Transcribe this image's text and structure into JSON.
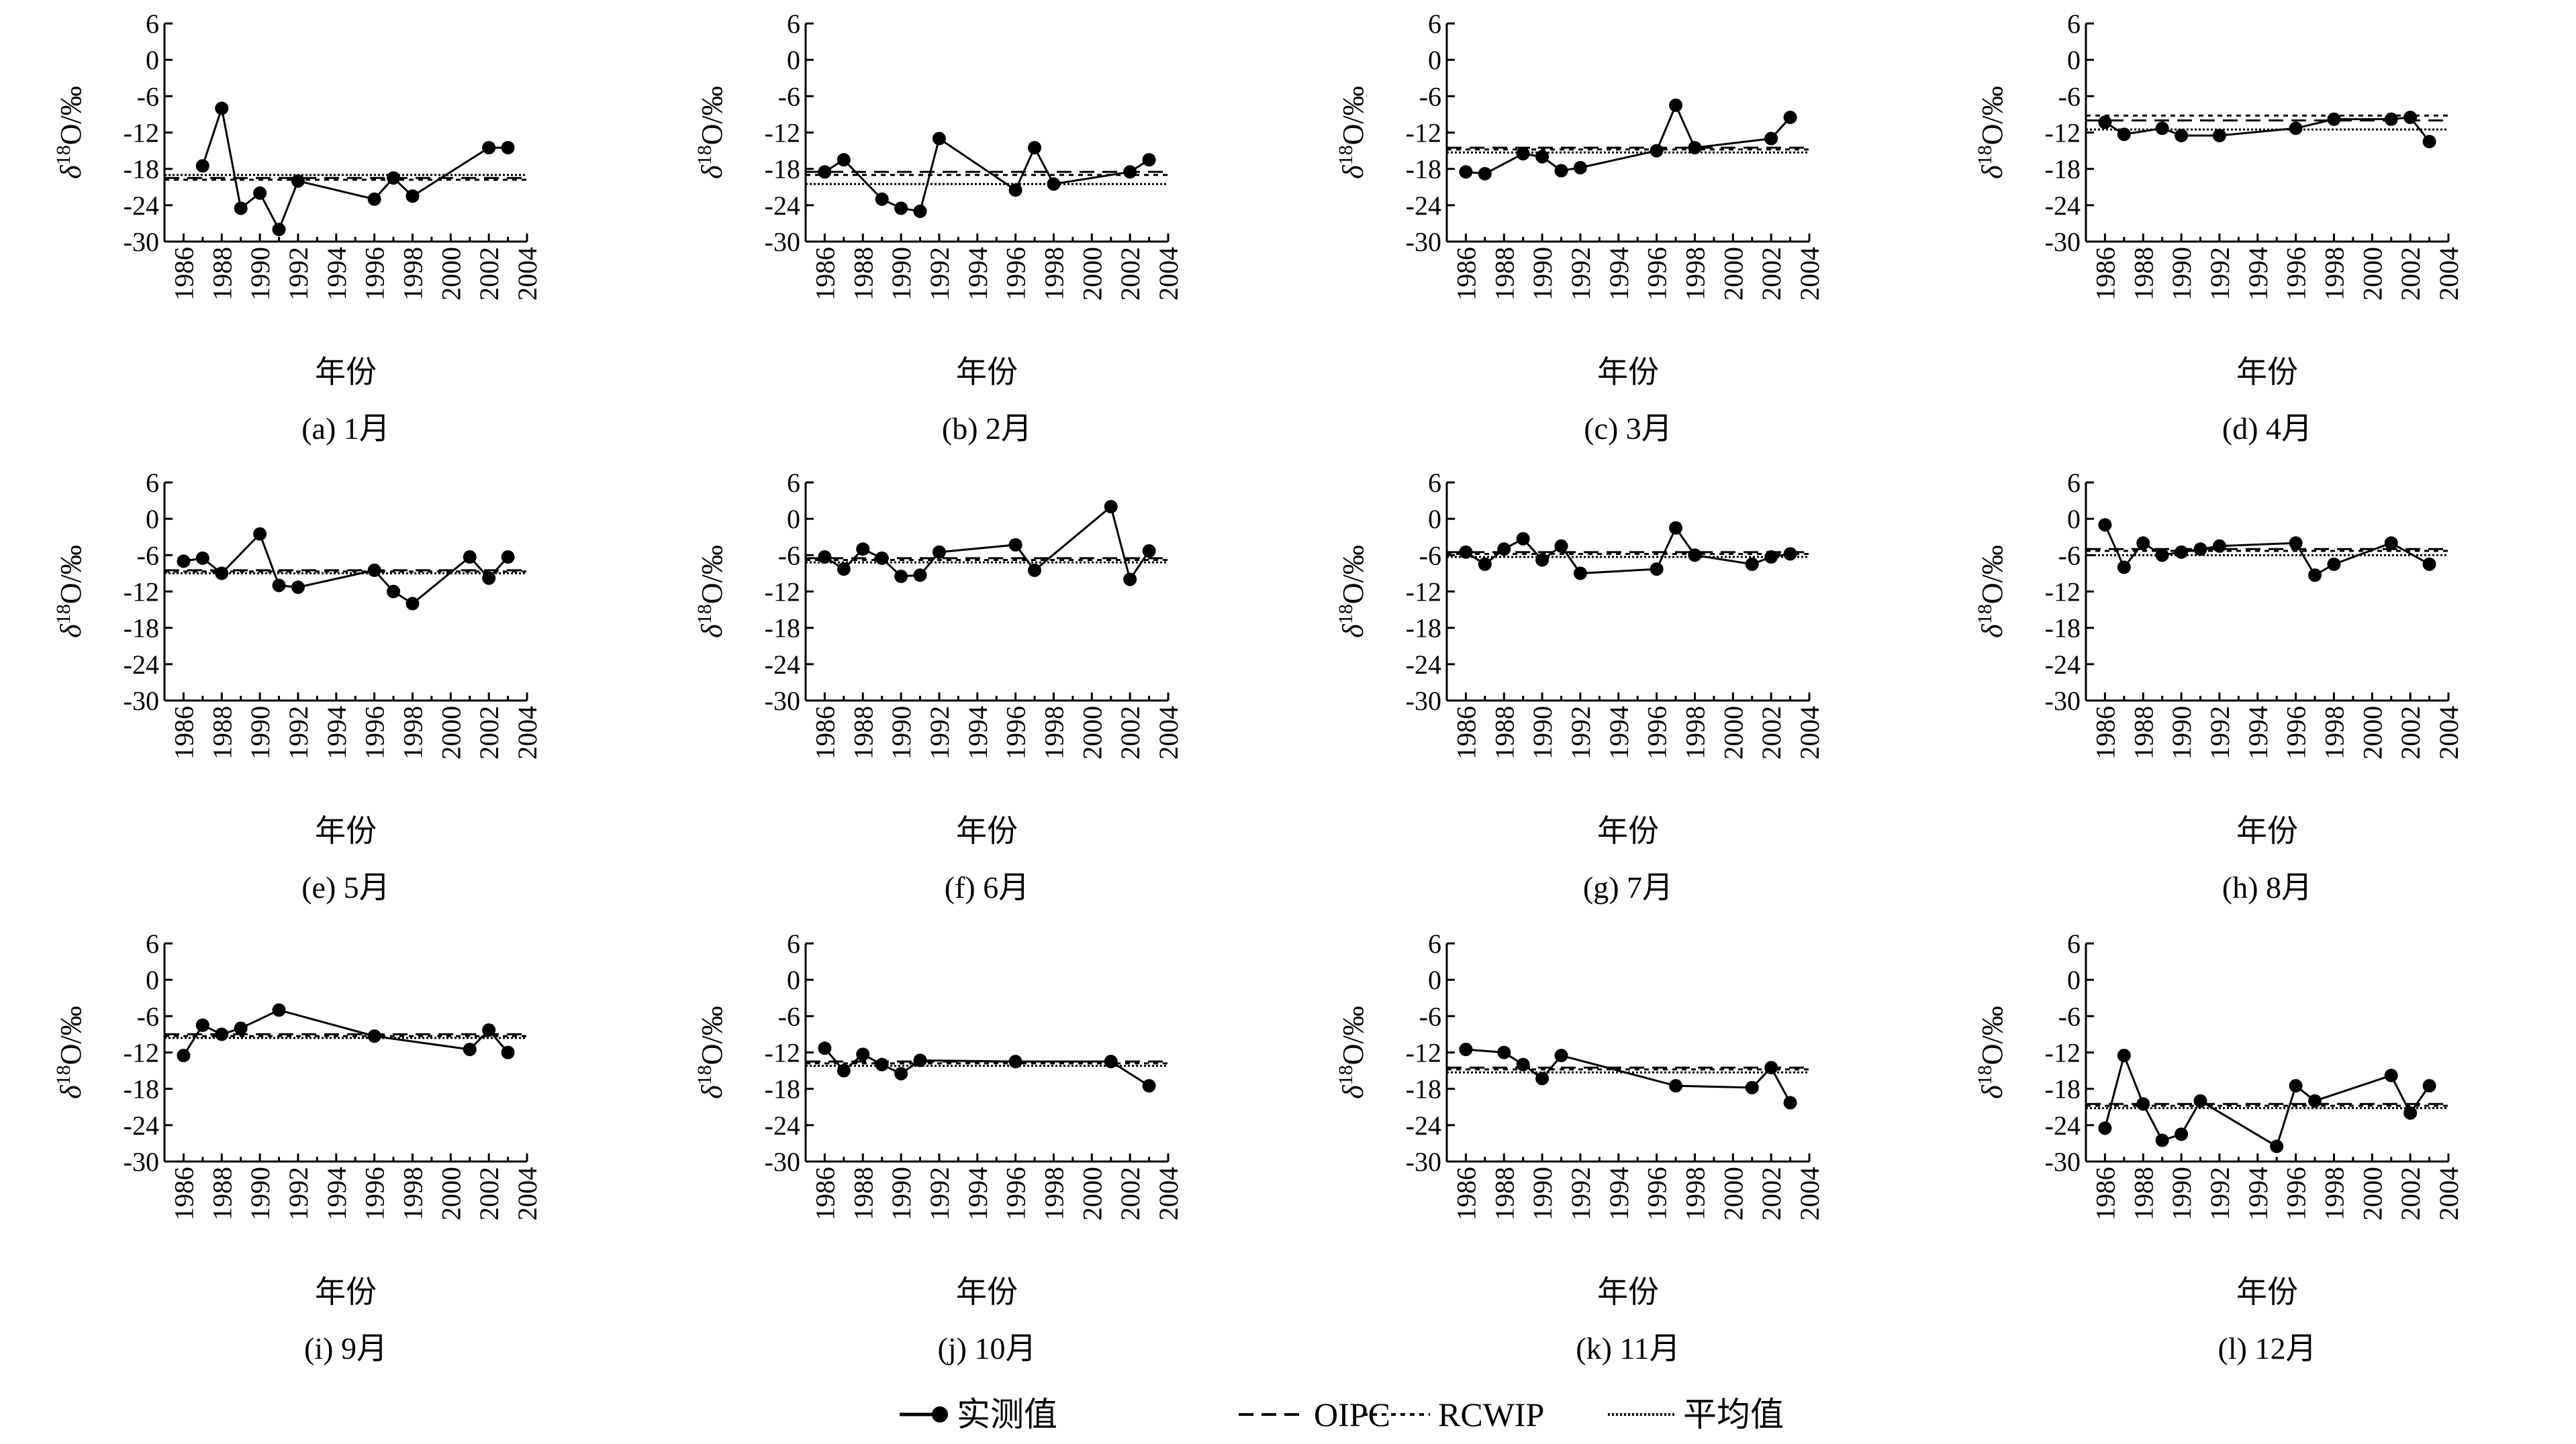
{
  "chart_data": {
    "type": "line",
    "xlabel": "年份",
    "ylabel": "δ18O/‰",
    "ylabel_parts": {
      "symbol": "δ",
      "sup": "18",
      "rest": "O/‰"
    },
    "xlim": [
      1985,
      2004
    ],
    "ylim": [
      -30,
      6
    ],
    "xticks": [
      1986,
      1988,
      1990,
      1992,
      1994,
      1996,
      1998,
      2000,
      2002,
      2004
    ],
    "yticks": [
      6,
      0,
      -6,
      -12,
      -18,
      -24,
      -30
    ],
    "grid": false,
    "legend": {
      "position": "bottom-center",
      "items": [
        {
          "key": "observed",
          "label": "实测值",
          "style": "solid-marker"
        },
        {
          "key": "oipc",
          "label": "OIPC",
          "style": "dashed"
        },
        {
          "key": "rcwip",
          "label": "RCWIP",
          "style": "dotted"
        },
        {
          "key": "mean",
          "label": "平均值",
          "style": "dense-dotted"
        }
      ]
    },
    "panels": [
      {
        "caption": "(a) 1月",
        "oipc": -19.5,
        "rcwip": -19.8,
        "mean": -19.0,
        "x": [
          1987,
          1988,
          1989,
          1990,
          1991,
          1992,
          1996,
          1997,
          1998,
          2002,
          2003
        ],
        "y": [
          -17.5,
          -8.0,
          -24.5,
          -22.0,
          -28.0,
          -20.0,
          -23.0,
          -19.5,
          -22.5,
          -14.5,
          -14.5
        ]
      },
      {
        "caption": "(b) 2月",
        "oipc": -18.5,
        "rcwip": -19.0,
        "mean": -20.5,
        "x": [
          1986,
          1987,
          1989,
          1990,
          1991,
          1992,
          1996,
          1997,
          1998,
          2002,
          2003
        ],
        "y": [
          -18.5,
          -16.5,
          -23.0,
          -24.5,
          -25.0,
          -13.0,
          -21.5,
          -14.5,
          -20.5,
          -18.5,
          -16.5
        ]
      },
      {
        "caption": "(c) 3月",
        "oipc": -14.5,
        "rcwip": -14.8,
        "mean": -15.3,
        "x": [
          1986,
          1987,
          1989,
          1990,
          1991,
          1992,
          1996,
          1997,
          1998,
          2002,
          2003
        ],
        "y": [
          -18.5,
          -18.8,
          -15.5,
          -16.0,
          -18.3,
          -17.8,
          -15.0,
          -7.5,
          -14.5,
          -13.0,
          -9.5
        ]
      },
      {
        "caption": "(d) 4月",
        "oipc": -10.0,
        "rcwip": -9.2,
        "mean": -11.5,
        "x": [
          1986,
          1987,
          1989,
          1990,
          1992,
          1996,
          1998,
          2001,
          2002,
          2003
        ],
        "y": [
          -10.3,
          -12.3,
          -11.3,
          -12.5,
          -12.5,
          -11.3,
          -9.8,
          -9.8,
          -9.5,
          -13.5
        ]
      },
      {
        "caption": "(e) 5月",
        "oipc": -8.5,
        "rcwip": -8.7,
        "mean": -9.0,
        "x": [
          1986,
          1987,
          1988,
          1990,
          1991,
          1992,
          1996,
          1997,
          1998,
          2001,
          2002,
          2003
        ],
        "y": [
          -7.0,
          -6.5,
          -9.0,
          -2.5,
          -11.0,
          -11.3,
          -8.5,
          -12.0,
          -14.0,
          -6.3,
          -9.8,
          -6.3
        ]
      },
      {
        "caption": "(f) 6月",
        "oipc": -6.5,
        "rcwip": -6.8,
        "mean": -7.2,
        "x": [
          1986,
          1987,
          1988,
          1989,
          1990,
          1991,
          1992,
          1996,
          1997,
          2001,
          2002,
          2003
        ],
        "y": [
          -6.3,
          -8.3,
          -5.0,
          -6.5,
          -9.5,
          -9.3,
          -5.5,
          -4.3,
          -8.5,
          2.0,
          -10.0,
          -5.3
        ]
      },
      {
        "caption": "(g) 7月",
        "oipc": -5.5,
        "rcwip": -5.8,
        "mean": -6.3,
        "x": [
          1986,
          1987,
          1988,
          1989,
          1990,
          1991,
          1992,
          1996,
          1997,
          1998,
          2001,
          2002,
          2003
        ],
        "y": [
          -5.5,
          -7.5,
          -5.0,
          -3.3,
          -6.8,
          -4.5,
          -9.0,
          -8.3,
          -1.5,
          -6.0,
          -7.5,
          -6.3,
          -5.8
        ]
      },
      {
        "caption": "(h) 8月",
        "oipc": -5.0,
        "rcwip": -5.3,
        "mean": -6.0,
        "x": [
          1986,
          1987,
          1988,
          1989,
          1990,
          1991,
          1992,
          1996,
          1997,
          1998,
          2001,
          2003
        ],
        "y": [
          -1.0,
          -8.0,
          -4.0,
          -6.0,
          -5.5,
          -5.0,
          -4.5,
          -4.0,
          -9.3,
          -7.5,
          -4.0,
          -7.5
        ]
      },
      {
        "caption": "(i) 9月",
        "oipc": -9.0,
        "rcwip": -9.3,
        "mean": -9.6,
        "x": [
          1986,
          1987,
          1988,
          1989,
          1991,
          1996,
          2001,
          2002,
          2003
        ],
        "y": [
          -12.5,
          -7.5,
          -9.0,
          -8.0,
          -5.0,
          -9.3,
          -11.5,
          -8.3,
          -12.0
        ]
      },
      {
        "caption": "(j) 10月",
        "oipc": -13.5,
        "rcwip": -13.8,
        "mean": -14.2,
        "x": [
          1986,
          1987,
          1988,
          1989,
          1990,
          1991,
          1996,
          2001,
          2003
        ],
        "y": [
          -11.3,
          -15.0,
          -12.3,
          -14.0,
          -15.5,
          -13.3,
          -13.5,
          -13.5,
          -17.5
        ]
      },
      {
        "caption": "(k) 11月",
        "oipc": -14.5,
        "rcwip": -14.8,
        "mean": -15.3,
        "x": [
          1986,
          1988,
          1989,
          1990,
          1991,
          1997,
          2001,
          2002,
          2003
        ],
        "y": [
          -11.5,
          -12.0,
          -14.0,
          -16.3,
          -12.5,
          -17.5,
          -17.8,
          -14.5,
          -20.3
        ]
      },
      {
        "caption": "(l) 12月",
        "oipc": -20.5,
        "rcwip": -20.8,
        "mean": -21.2,
        "x": [
          1986,
          1987,
          1988,
          1989,
          1990,
          1991,
          1995,
          1996,
          1997,
          2001,
          2002,
          2003
        ],
        "y": [
          -24.5,
          -12.5,
          -20.5,
          -26.5,
          -25.5,
          -20.0,
          -27.5,
          -17.5,
          -20.0,
          -15.8,
          -22.0,
          -17.5
        ]
      }
    ]
  }
}
